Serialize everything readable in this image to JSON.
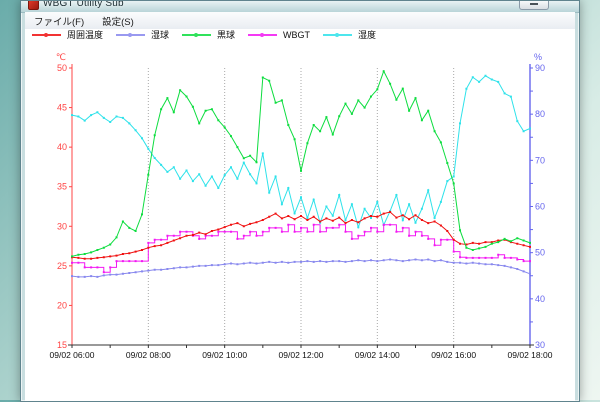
{
  "window": {
    "title": "WBGT Utility Sub"
  },
  "menu": {
    "items": [
      {
        "label": "ファイル(F)"
      },
      {
        "label": "設定(S)"
      }
    ]
  },
  "legend": [
    {
      "label": "周囲温度",
      "color": "#f01010"
    },
    {
      "label": "湿球",
      "color": "#8888ee"
    },
    {
      "label": "黒球",
      "color": "#0ddd3f"
    },
    {
      "label": "WBGT",
      "color": "#f318f3"
    },
    {
      "label": "湿度",
      "color": "#2ee2ea"
    }
  ],
  "chart_data": {
    "type": "line",
    "title": "",
    "x_axis": {
      "start": "09/02 06:00",
      "end": "09/02 18:00",
      "step_minutes": 10,
      "tick_labels": [
        "09/02 06:00",
        "09/02 08:00",
        "09/02 10:00",
        "09/02 12:00",
        "09/02 14:00",
        "09/02 16:00",
        "09/02 18:00"
      ],
      "tick_hours": [
        6,
        8,
        10,
        12,
        14,
        16,
        18
      ],
      "minor_tick_every_hours": 1,
      "gridline_hours": [
        8,
        10,
        12,
        14,
        16
      ],
      "color": "#333333",
      "label_color": "#111111"
    },
    "y_left": {
      "unit": "℃",
      "min": 15,
      "max": 50,
      "ticks": [
        50,
        45,
        40,
        35,
        30,
        25,
        20,
        15
      ],
      "color": "#ff4444"
    },
    "y_right": {
      "unit": "%",
      "min": 30,
      "max": 90,
      "tick_step": 5,
      "labeled_ticks": [
        90,
        80,
        70,
        60,
        50,
        40,
        30
      ],
      "color": "#6666ee"
    },
    "grid_style": "dotted-vertical",
    "legend_position": "top",
    "series": [
      {
        "name": "周囲温度",
        "key": "ambient-temp",
        "axis": "left",
        "color": "#f01010",
        "step": false,
        "values": [
          26.1,
          26.0,
          25.9,
          25.9,
          26.0,
          26.1,
          26.2,
          26.3,
          26.5,
          26.6,
          26.8,
          27.0,
          27.3,
          27.5,
          27.6,
          27.9,
          28.2,
          28.5,
          28.8,
          28.9,
          29.2,
          29.0,
          29.4,
          29.6,
          29.9,
          30.2,
          30.4,
          30.0,
          30.3,
          30.5,
          30.8,
          31.2,
          31.6,
          31.0,
          31.3,
          30.9,
          31.3,
          30.8,
          31.2,
          30.6,
          31.0,
          30.7,
          31.1,
          30.4,
          30.8,
          30.5,
          31.0,
          31.3,
          31.2,
          31.6,
          31.8,
          31.1,
          31.4,
          30.9,
          31.4,
          30.8,
          30.4,
          30.6,
          30.1,
          29.4,
          28.3,
          27.8,
          27.7,
          27.9,
          27.8,
          28.0,
          28.0,
          28.2,
          28.3,
          28.0,
          27.8,
          27.6,
          27.4
        ]
      },
      {
        "name": "湿球",
        "key": "wet-bulb",
        "axis": "left",
        "color": "#8888ee",
        "step": false,
        "values": [
          23.7,
          23.6,
          23.6,
          23.7,
          23.6,
          23.8,
          23.9,
          23.9,
          24.0,
          24.1,
          24.2,
          24.3,
          24.4,
          24.5,
          24.5,
          24.6,
          24.7,
          24.8,
          24.8,
          24.9,
          25.0,
          25.0,
          25.1,
          25.1,
          25.2,
          25.3,
          25.2,
          25.3,
          25.4,
          25.3,
          25.4,
          25.5,
          25.4,
          25.5,
          25.4,
          25.5,
          25.5,
          25.6,
          25.5,
          25.6,
          25.5,
          25.6,
          25.6,
          25.5,
          25.6,
          25.7,
          25.6,
          25.7,
          25.6,
          25.7,
          25.8,
          25.7,
          25.6,
          25.7,
          25.8,
          25.7,
          25.8,
          25.6,
          25.7,
          25.5,
          25.4,
          25.4,
          25.3,
          25.4,
          25.3,
          25.2,
          25.2,
          25.1,
          25.0,
          24.8,
          24.6,
          24.3,
          24.0
        ]
      },
      {
        "name": "黒球",
        "key": "globe-temp",
        "axis": "left",
        "color": "#0ddd3f",
        "step": false,
        "values": [
          26.2,
          26.4,
          26.5,
          26.7,
          27.0,
          27.3,
          27.7,
          28.6,
          30.6,
          29.8,
          29.4,
          31.5,
          36.5,
          41.5,
          44.8,
          46.2,
          44.4,
          47.2,
          46.4,
          45.1,
          43.0,
          44.6,
          44.8,
          43.4,
          42.5,
          41.4,
          40.0,
          38.6,
          38.9,
          38.1,
          48.8,
          48.4,
          45.6,
          45.9,
          42.8,
          41.0,
          37.0,
          40.5,
          42.8,
          42.0,
          43.8,
          41.6,
          43.9,
          45.5,
          44.2,
          45.9,
          45.0,
          46.4,
          47.3,
          49.6,
          48.0,
          46.0,
          47.4,
          44.6,
          46.2,
          43.4,
          44.6,
          42.0,
          40.6,
          38.0,
          35.4,
          29.5,
          27.3,
          27.0,
          27.2,
          27.4,
          27.8,
          28.0,
          28.4,
          28.1,
          28.5,
          28.2,
          27.9
        ]
      },
      {
        "name": "WBGT",
        "key": "wbgt",
        "axis": "left",
        "color": "#f318f3",
        "step": true,
        "values": [
          25.4,
          25.4,
          24.8,
          24.8,
          24.8,
          24.2,
          24.8,
          25.6,
          25.6,
          25.6,
          25.6,
          25.6,
          27.9,
          28.3,
          28.3,
          28.8,
          28.8,
          29.3,
          29.3,
          28.8,
          28.4,
          28.8,
          28.8,
          29.3,
          29.3,
          29.3,
          28.4,
          28.8,
          29.3,
          28.8,
          29.3,
          29.8,
          29.8,
          29.3,
          30.2,
          29.3,
          29.8,
          29.3,
          30.2,
          29.3,
          29.8,
          29.8,
          30.2,
          29.3,
          28.4,
          28.8,
          29.3,
          29.8,
          29.3,
          30.2,
          30.2,
          29.3,
          29.8,
          28.8,
          29.3,
          28.8,
          28.4,
          27.6,
          28.3,
          28.3,
          26.8,
          26.1,
          26.0,
          26.0,
          26.0,
          26.0,
          26.0,
          26.4,
          26.0,
          26.0,
          25.8,
          25.6,
          25.6
        ]
      },
      {
        "name": "湿度",
        "key": "humidity",
        "axis": "right",
        "color": "#2ee2ea",
        "step": false,
        "values": [
          79.8,
          79.5,
          78.6,
          79.8,
          80.4,
          79.2,
          78.3,
          79.5,
          79.2,
          78.0,
          76.5,
          74.8,
          72.5,
          70.5,
          69.0,
          67.5,
          68.5,
          66.0,
          67.8,
          65.5,
          67.0,
          64.5,
          66.5,
          64.0,
          66.8,
          68.5,
          66.0,
          69.5,
          67.0,
          65.0,
          71.5,
          63.0,
          66.5,
          60.5,
          64.0,
          58.5,
          62.0,
          57.5,
          61.5,
          56.5,
          60.0,
          58.0,
          62.5,
          57.0,
          60.5,
          55.5,
          59.5,
          57.5,
          61.0,
          56.0,
          59.0,
          62.5,
          57.0,
          60.5,
          56.5,
          59.5,
          63.5,
          57.5,
          61.0,
          65.5,
          66.5,
          78.0,
          85.5,
          88.0,
          87.0,
          88.3,
          87.5,
          87.0,
          84.5,
          83.8,
          78.5,
          76.3,
          76.9
        ]
      }
    ],
    "draw_order": [
      "humidity",
      "wbgt",
      "wet-bulb",
      "ambient-temp",
      "globe-temp"
    ]
  }
}
